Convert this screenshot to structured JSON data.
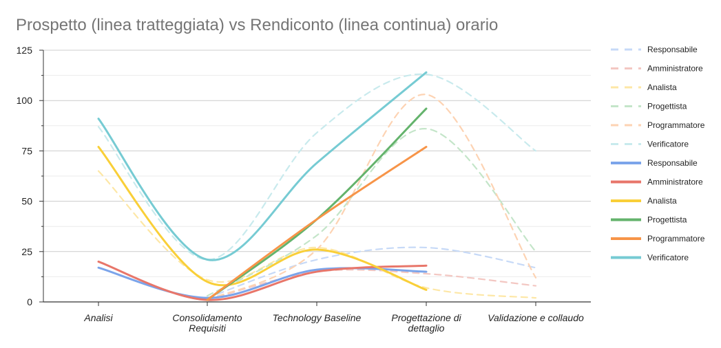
{
  "chart_data": {
    "type": "line",
    "title": "Prospetto (linea tratteggiata) vs Rendiconto (linea continua) orario",
    "categories": [
      "Analisi",
      "Consolidamento Requisiti",
      "Technology Baseline",
      "Progettazione di dettaglio",
      "Validazione e collaudo"
    ],
    "category_lines": [
      [
        "Analisi"
      ],
      [
        "Consolidamento",
        "Requisiti"
      ],
      [
        "Technology Baseline"
      ],
      [
        "Progettazione di",
        "dettaglio"
      ],
      [
        "Validazione e collaudo"
      ]
    ],
    "ylim": [
      0,
      125
    ],
    "yticks": [
      0,
      25,
      50,
      75,
      100,
      125
    ],
    "yticks_labels": [
      "0",
      "25",
      "50",
      "75",
      "100",
      "125"
    ],
    "grid": true,
    "legend_position": "right",
    "series": [
      {
        "name": "Responsabile",
        "style": "dashed",
        "color": "#c6d9f7",
        "values": [
          null,
          2,
          21,
          27,
          17
        ]
      },
      {
        "name": "Amministratore",
        "style": "dashed",
        "color": "#f3c7c2",
        "values": [
          null,
          1,
          15,
          14,
          8
        ]
      },
      {
        "name": "Analista",
        "style": "dashed",
        "color": "#fde7a6",
        "values": [
          65,
          11,
          27,
          7,
          2
        ]
      },
      {
        "name": "Progettista",
        "style": "dashed",
        "color": "#c4e5c9",
        "values": [
          null,
          3,
          33,
          86,
          25
        ]
      },
      {
        "name": "Programmatore",
        "style": "dashed",
        "color": "#fdd3b3",
        "values": [
          null,
          1,
          26,
          103,
          12
        ]
      },
      {
        "name": "Verificatore",
        "style": "dashed",
        "color": "#c8eaed",
        "values": [
          87,
          21,
          84,
          113,
          75
        ]
      },
      {
        "name": "Responsabile",
        "style": "solid",
        "color": "#7ba4ea",
        "values": [
          17,
          2,
          16,
          15,
          null
        ]
      },
      {
        "name": "Amministratore",
        "style": "solid",
        "color": "#e8766a",
        "values": [
          20,
          1,
          15,
          18,
          null
        ]
      },
      {
        "name": "Analista",
        "style": "solid",
        "color": "#f9cf38",
        "values": [
          77,
          10,
          26,
          6,
          null
        ]
      },
      {
        "name": "Progettista",
        "style": "solid",
        "color": "#64b36c",
        "values": [
          null,
          1,
          41,
          96,
          null
        ]
      },
      {
        "name": "Programmatore",
        "style": "solid",
        "color": "#f79448",
        "values": [
          null,
          1,
          41,
          77,
          null
        ]
      },
      {
        "name": "Verificatore",
        "style": "solid",
        "color": "#76cbd3",
        "values": [
          91,
          21,
          69,
          114,
          null
        ]
      }
    ]
  }
}
